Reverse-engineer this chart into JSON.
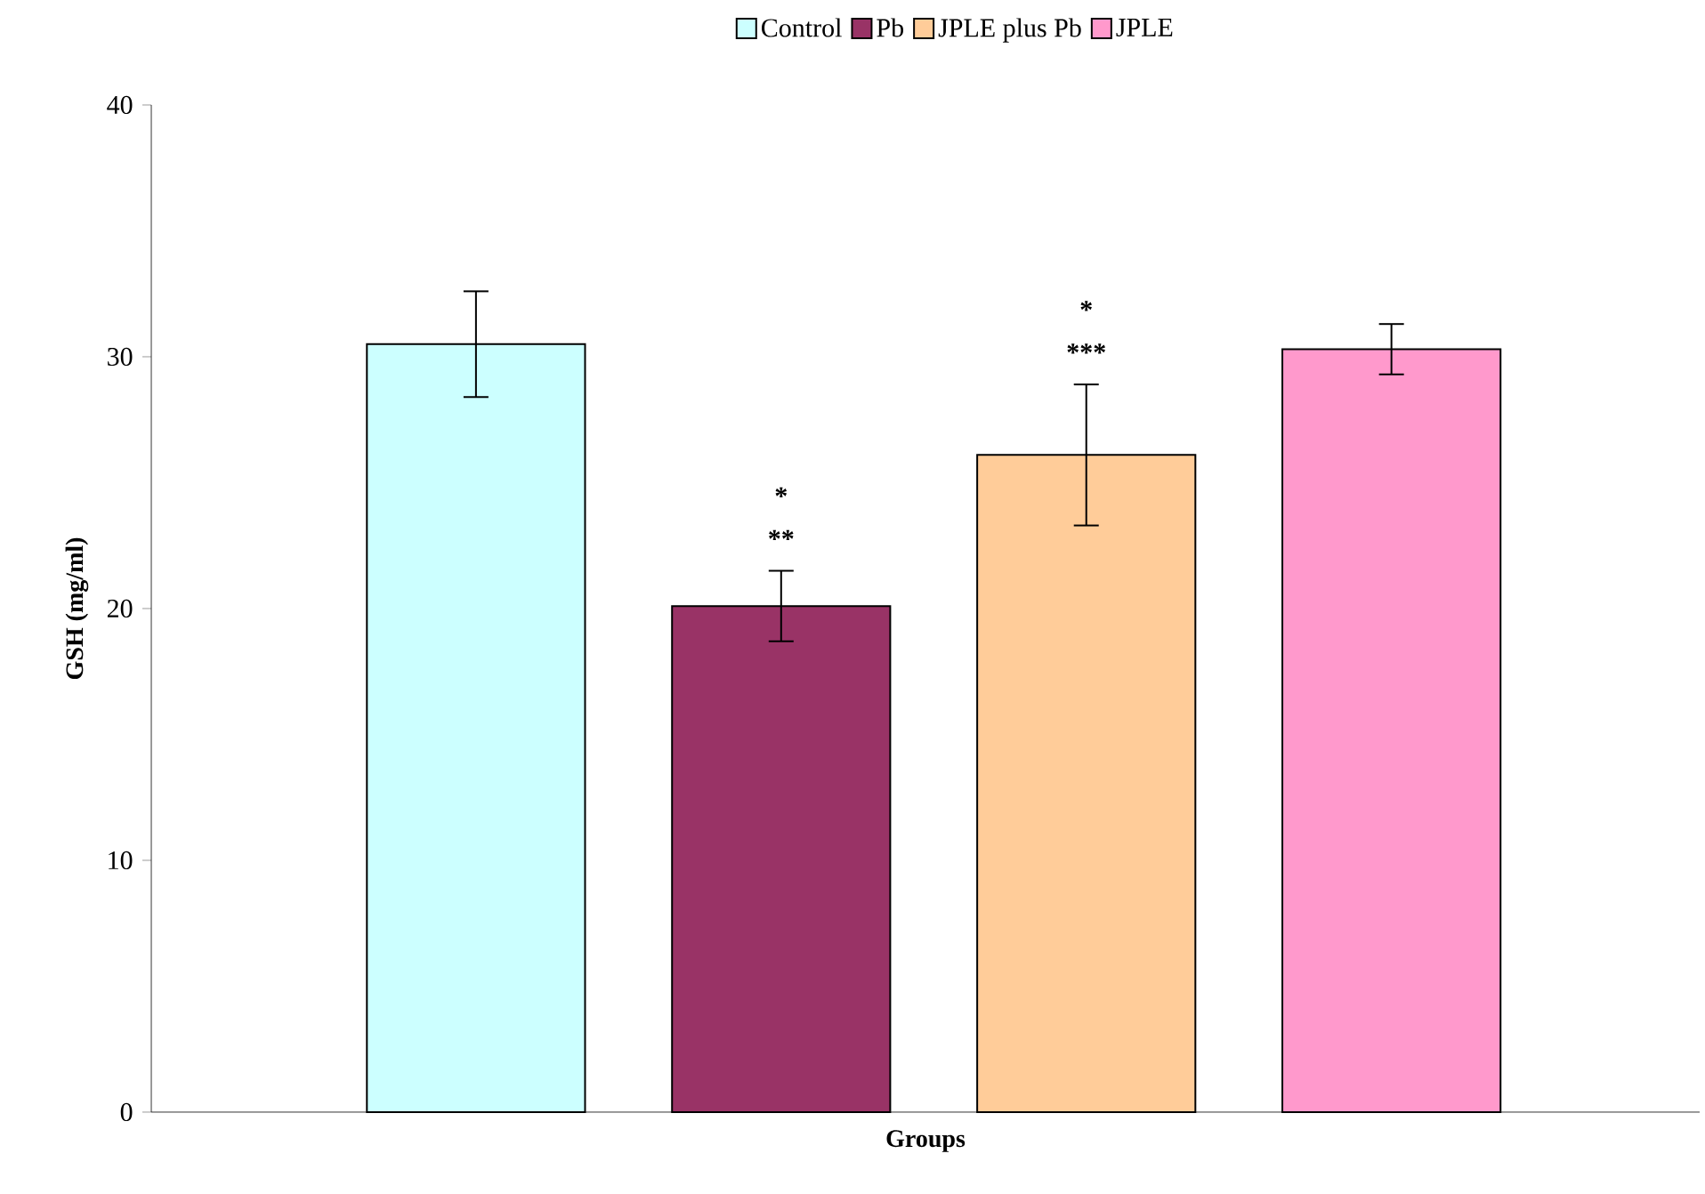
{
  "chart_data": {
    "type": "bar",
    "xlabel": "Groups",
    "ylabel": "GSH (mg/ml)",
    "categories": [
      null,
      null,
      null,
      null
    ],
    "series": [
      {
        "name": "Control",
        "color": "#ccffff",
        "values": [
          30.5,
          null,
          null,
          null
        ],
        "errors": [
          2.1,
          null,
          null,
          null
        ]
      },
      {
        "name": "Pb",
        "color": "#993366",
        "values": [
          null,
          20.1,
          null,
          null
        ],
        "errors": [
          null,
          1.4,
          null,
          null
        ]
      },
      {
        "name": "JPLE plus Pb",
        "color": "#ffcc99",
        "values": [
          null,
          null,
          26.1,
          null
        ],
        "errors": [
          null,
          null,
          2.8,
          null
        ]
      },
      {
        "name": "JPLE",
        "color": "#ff99cc",
        "values": [
          null,
          null,
          null,
          30.3
        ],
        "errors": [
          null,
          null,
          null,
          1.0
        ]
      }
    ],
    "annotations": [
      "*",
      "**",
      "*",
      "***"
    ],
    "ylim": [
      0,
      40
    ],
    "yticks": [
      0,
      10,
      20,
      30,
      40
    ],
    "grid": false,
    "legend": "top"
  }
}
